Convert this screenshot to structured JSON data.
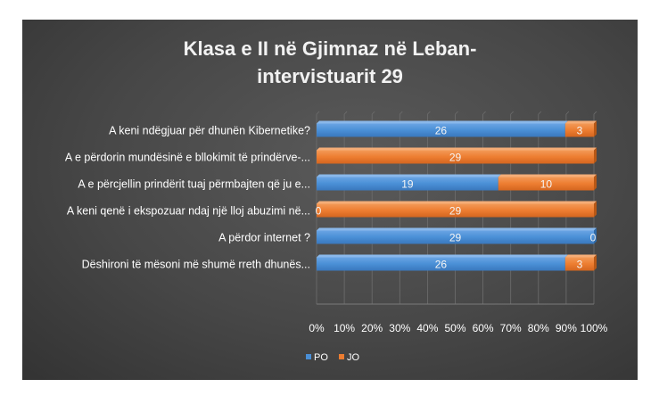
{
  "chart_data": {
    "type": "bar",
    "orientation": "horizontal",
    "stacked": "percent",
    "title": "Klasa e  II në Gjimnaz  në Leban-intervistuarit 29",
    "title_lines": [
      "Klasa e  II në Gjimnaz  në Leban-",
      "intervistuarit 29"
    ],
    "categories": [
      "A keni ndëgjuar për dhunën Kibernetike?",
      "A e  përdorin mundësinë e bllokimit të  prindërve-...",
      "A e përcjellin prindërit tuaj përmbajten që ju e...",
      "A keni qenë i ekspozuar ndaj një lloj abuzimi në...",
      "A përdor internet ?",
      "Dëshironi të mësoni më shumë rreth dhunës..."
    ],
    "series": [
      {
        "name": "PO",
        "color": "#4a8fd6",
        "values": [
          26,
          0,
          19,
          0,
          29,
          26
        ]
      },
      {
        "name": "JO",
        "color": "#ed7d31",
        "values": [
          3,
          29,
          10,
          29,
          0,
          3
        ]
      }
    ],
    "data_labels": [
      [
        "26",
        "",
        "19",
        "0",
        "29",
        "26"
      ],
      [
        "3",
        "29",
        "10",
        "29",
        "0",
        "3"
      ]
    ],
    "x_ticks": [
      "0%",
      "10%",
      "20%",
      "30%",
      "40%",
      "50%",
      "60%",
      "70%",
      "80%",
      "90%",
      "100%"
    ],
    "xlim": [
      0,
      100
    ],
    "grid": true,
    "legend_position": "bottom-left"
  }
}
